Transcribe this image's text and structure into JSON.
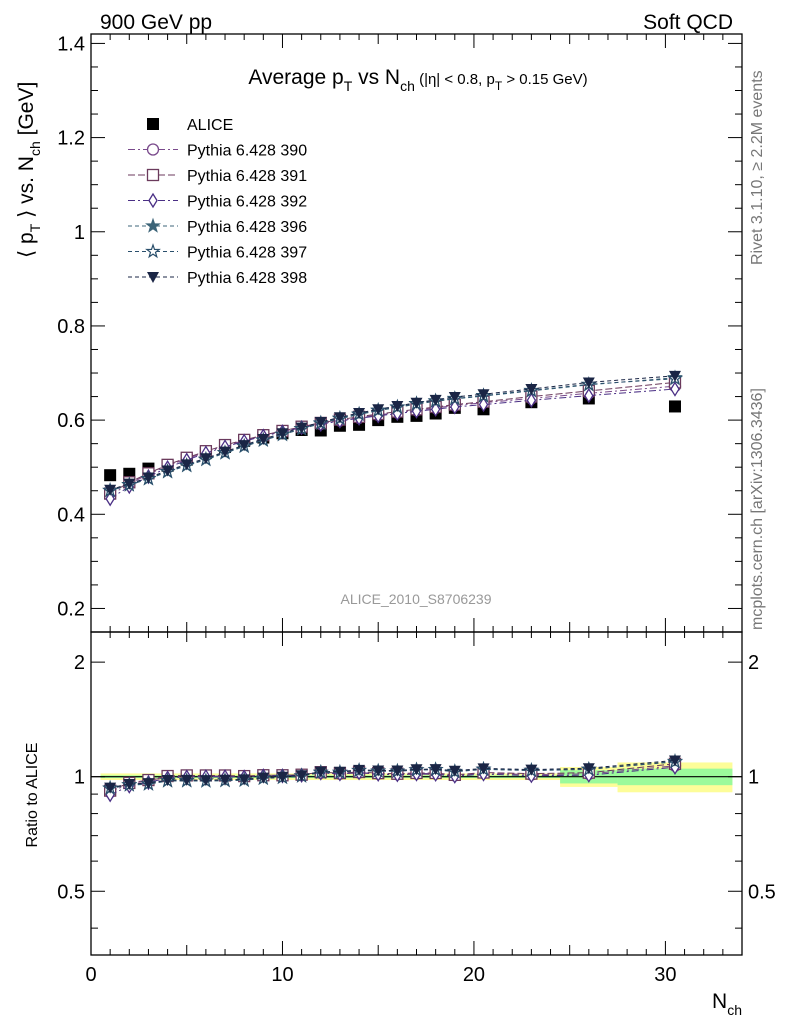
{
  "header": {
    "left": "900 GeV pp",
    "right": "Soft QCD"
  },
  "side_text": {
    "rivet": "Rivet 3.1.10, ≥ 2.2M events",
    "mcplots": "mcplots.cern.ch [arXiv:1306.3436]"
  },
  "watermark": "ALICE_2010_S8706239",
  "colors": {
    "alice": "#000000",
    "p390": "#7a4a8c",
    "p391": "#6b3a5c",
    "p392": "#4a2f85",
    "p396": "#3c6478",
    "p397": "#2a4f6c",
    "p398": "#1a2545",
    "band_stat": "#9bfa9b",
    "band_tot": "#fdfd99"
  },
  "chart_data": [
    {
      "type": "scatter",
      "title": {
        "main": "Average p",
        "sub1": "T",
        "mid": " vs N",
        "sub2": "ch",
        "tail": " (|η| < 0.8, p",
        "sub3": "T",
        "end": " > 0.15 GeV)"
      },
      "ylabel": {
        "a": "⟨ p",
        "sub": "T",
        "b": " ⟩ vs. N",
        "sub2": "ch",
        "c": " [GeV]"
      },
      "xlim": [
        0,
        34
      ],
      "ylim": [
        0.15,
        1.42
      ],
      "yticks": [
        {
          "v": 0.2,
          "label": "0.2"
        },
        {
          "v": 0.4,
          "label": "0.4"
        },
        {
          "v": 0.6,
          "label": "0.6"
        },
        {
          "v": 0.8,
          "label": "0.8"
        },
        {
          "v": 1.0,
          "label": "1"
        },
        {
          "v": 1.2,
          "label": "1.2"
        },
        {
          "v": 1.4,
          "label": "1.4"
        }
      ],
      "legend_placement": "top-left",
      "x": [
        1,
        2,
        3,
        4,
        5,
        6,
        7,
        8,
        9,
        10,
        11,
        12,
        13,
        14,
        15,
        16,
        17,
        18,
        19,
        20.5,
        23,
        26,
        30.5
      ],
      "series": [
        {
          "name": "ALICE",
          "marker": "square-filled",
          "color_key": "alice",
          "values": [
            0.483,
            0.486,
            0.497,
            0.503,
            0.516,
            0.53,
            0.543,
            0.556,
            0.563,
            0.572,
            0.579,
            0.578,
            0.588,
            0.59,
            0.6,
            0.607,
            0.609,
            0.614,
            0.626,
            0.623,
            0.638,
            0.646,
            0.629
          ]
        },
        {
          "name": "Pythia 6.428 390",
          "marker": "circle-open",
          "color_key": "p390",
          "values": [
            0.44,
            0.465,
            0.485,
            0.503,
            0.518,
            0.532,
            0.545,
            0.557,
            0.567,
            0.576,
            0.585,
            0.592,
            0.599,
            0.605,
            0.611,
            0.616,
            0.621,
            0.626,
            0.631,
            0.637,
            0.646,
            0.657,
            0.672
          ]
        },
        {
          "name": "Pythia 6.428 391",
          "marker": "square-open",
          "color_key": "p391",
          "values": [
            0.444,
            0.468,
            0.487,
            0.505,
            0.52,
            0.534,
            0.547,
            0.558,
            0.568,
            0.577,
            0.586,
            0.594,
            0.601,
            0.607,
            0.613,
            0.618,
            0.623,
            0.628,
            0.633,
            0.639,
            0.65,
            0.662,
            0.68
          ]
        },
        {
          "name": "Pythia 6.428 392",
          "marker": "diamond-open",
          "color_key": "p392",
          "values": [
            0.433,
            0.459,
            0.48,
            0.499,
            0.515,
            0.53,
            0.543,
            0.555,
            0.566,
            0.575,
            0.584,
            0.591,
            0.598,
            0.604,
            0.609,
            0.614,
            0.619,
            0.623,
            0.628,
            0.633,
            0.642,
            0.652,
            0.666
          ]
        },
        {
          "name": "Pythia 6.428 396",
          "marker": "star-filled",
          "color_key": "p396",
          "values": [
            0.45,
            0.462,
            0.475,
            0.49,
            0.503,
            0.516,
            0.53,
            0.544,
            0.557,
            0.569,
            0.581,
            0.593,
            0.603,
            0.612,
            0.62,
            0.627,
            0.634,
            0.64,
            0.645,
            0.651,
            0.662,
            0.675,
            0.69
          ]
        },
        {
          "name": "Pythia 6.428 397",
          "marker": "star-open",
          "color_key": "p397",
          "values": [
            0.451,
            0.463,
            0.476,
            0.491,
            0.504,
            0.517,
            0.531,
            0.545,
            0.558,
            0.57,
            0.582,
            0.594,
            0.604,
            0.613,
            0.621,
            0.628,
            0.635,
            0.641,
            0.646,
            0.652,
            0.663,
            0.676,
            0.688
          ]
        },
        {
          "name": "Pythia 6.428 398",
          "marker": "triangle-down-filled",
          "color_key": "p398",
          "values": [
            0.452,
            0.465,
            0.478,
            0.493,
            0.506,
            0.519,
            0.533,
            0.547,
            0.56,
            0.572,
            0.584,
            0.596,
            0.606,
            0.615,
            0.623,
            0.63,
            0.637,
            0.643,
            0.649,
            0.655,
            0.666,
            0.68,
            0.694
          ]
        }
      ]
    },
    {
      "type": "scatter",
      "ylabel": "Ratio to ALICE",
      "xlabel": {
        "a": "N",
        "sub": "ch"
      },
      "xlim": [
        0,
        34
      ],
      "ylim": [
        0.34,
        2.4
      ],
      "ylog": true,
      "yticks": [
        {
          "v": 0.5,
          "label": "0.5"
        },
        {
          "v": 1,
          "label": "1"
        },
        {
          "v": 2,
          "label": "2"
        }
      ],
      "xticks": [
        {
          "v": 0,
          "label": "0"
        },
        {
          "v": 10,
          "label": "10"
        },
        {
          "v": 20,
          "label": "20"
        },
        {
          "v": 30,
          "label": "30"
        }
      ],
      "bands": [
        {
          "x0": 0.5,
          "x1": 24.5,
          "stat": 0.008,
          "tot": 0.02
        },
        {
          "x0": 24.5,
          "x1": 27.5,
          "stat": 0.04,
          "tot": 0.06
        },
        {
          "x0": 27.5,
          "x1": 33.5,
          "stat": 0.05,
          "tot": 0.09
        }
      ]
    }
  ]
}
